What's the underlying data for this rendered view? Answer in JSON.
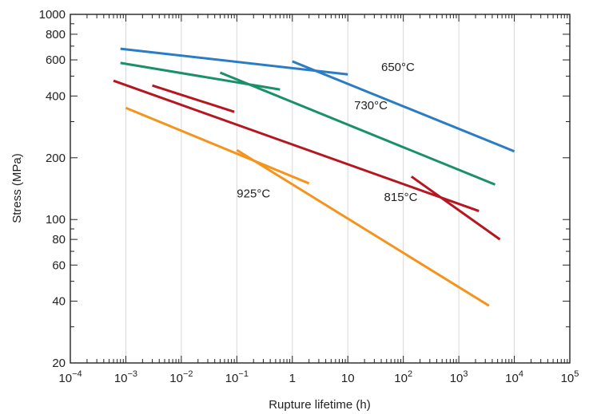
{
  "chart_data": {
    "type": "line",
    "title": "",
    "xlabel": "Rupture lifetime (h)",
    "ylabel": "Stress (MPa)",
    "xscale": "log",
    "yscale": "log",
    "xlim": [
      0.0001,
      100000
    ],
    "ylim": [
      20,
      1000
    ],
    "grid": "x-major",
    "x_ticks": [
      {
        "base": "10",
        "exp": "−4",
        "value": 0.0001
      },
      {
        "base": "10",
        "exp": "−3",
        "value": 0.001
      },
      {
        "base": "10",
        "exp": "−2",
        "value": 0.01
      },
      {
        "base": "10",
        "exp": "−1",
        "value": 0.1
      },
      {
        "base": "1",
        "exp": "",
        "value": 1
      },
      {
        "base": "10",
        "exp": "",
        "value": 10
      },
      {
        "base": "10",
        "exp": "2",
        "value": 100
      },
      {
        "base": "10",
        "exp": "3",
        "value": 1000
      },
      {
        "base": "10",
        "exp": "4",
        "value": 10000
      },
      {
        "base": "10",
        "exp": "5",
        "value": 100000
      }
    ],
    "y_ticks": [
      {
        "label": "20",
        "value": 20
      },
      {
        "label": "40",
        "value": 40
      },
      {
        "label": "60",
        "value": 60
      },
      {
        "label": "80",
        "value": 80
      },
      {
        "label": "100",
        "value": 100
      },
      {
        "label": "200",
        "value": 200
      },
      {
        "label": "400",
        "value": 400
      },
      {
        "label": "600",
        "value": 600
      },
      {
        "label": "800",
        "value": 800
      },
      {
        "label": "1000",
        "value": 1000
      }
    ],
    "series": [
      {
        "name": "650°C",
        "color": "#2a7cc4",
        "segments": [
          [
            [
              0.0008,
              680
            ],
            [
              10,
              510
            ]
          ],
          [
            [
              1,
              590
            ],
            [
              10000,
              215
            ]
          ]
        ]
      },
      {
        "name": "730°C",
        "color": "#1a9068",
        "segments": [
          [
            [
              0.0008,
              580
            ],
            [
              0.6,
              430
            ]
          ],
          [
            [
              0.05,
              520
            ],
            [
              4500,
              148
            ]
          ]
        ]
      },
      {
        "name": "815°C",
        "color": "#b5161f",
        "segments": [
          [
            [
              0.0006,
              475
            ],
            [
              2300,
              110
            ]
          ],
          [
            [
              0.003,
              450
            ],
            [
              0.09,
              335
            ]
          ],
          [
            [
              140,
              162
            ],
            [
              5500,
              80
            ]
          ]
        ]
      },
      {
        "name": "925°C",
        "color": "#f5941c",
        "segments": [
          [
            [
              0.001,
              350
            ],
            [
              2,
              150
            ]
          ],
          [
            [
              0.1,
              218
            ],
            [
              3500,
              38
            ]
          ]
        ]
      }
    ],
    "annotations": [
      {
        "series": "650°C",
        "text": "650°C",
        "x": 80,
        "y": 530
      },
      {
        "series": "730°C",
        "text": "730°C",
        "x": 26,
        "y": 345
      },
      {
        "series": "815°C",
        "text": "815°C",
        "x": 90,
        "y": 123
      },
      {
        "series": "925°C",
        "text": "925°C",
        "x": 0.2,
        "y": 128
      }
    ]
  }
}
